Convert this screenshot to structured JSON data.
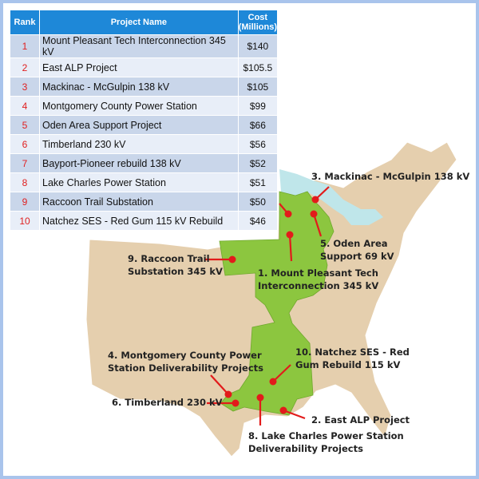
{
  "table": {
    "headers": {
      "rank": "Rank",
      "name": "Project Name",
      "cost_line1": "Cost",
      "cost_line2": "(Millions)"
    },
    "rows": [
      {
        "rank": "1",
        "name": "Mount Pleasant Tech Interconnection 345 kV",
        "cost": "$140"
      },
      {
        "rank": "2",
        "name": "East ALP Project",
        "cost": "$105.5"
      },
      {
        "rank": "3",
        "name": "Mackinac - McGulpin 138 kV",
        "cost": "$105"
      },
      {
        "rank": "4",
        "name": "Montgomery County Power Station",
        "cost": "$99"
      },
      {
        "rank": "5",
        "name": "Oden Area Support Project",
        "cost": "$66"
      },
      {
        "rank": "6",
        "name": "Timberland 230 kV",
        "cost": "$56"
      },
      {
        "rank": "7",
        "name": "Bayport-Pioneer rebuild  138 kV",
        "cost": "$52"
      },
      {
        "rank": "8",
        "name": "Lake Charles Power Station",
        "cost": "$51"
      },
      {
        "rank": "9",
        "name": "Raccoon Trail Substation",
        "cost": "$50"
      },
      {
        "rank": "10",
        "name": "Natchez SES - Red Gum 115 kV Rebuild",
        "cost": "$46"
      }
    ]
  },
  "map": {
    "colors": {
      "land": "#e5cfae",
      "region": "#8cc63f",
      "lakes": "#bfe6ea",
      "marker": "#e21b1b",
      "header": "#1e88d8"
    },
    "labels": {
      "mackinac": "3. Mackinac - McGulpin 138 kV",
      "oden_1": "5. Oden Area",
      "oden_2": "Support 69 kV",
      "raccoon_1": "9. Raccoon Trail",
      "raccoon_2": "Substation 345 kV",
      "mtpleasant_1": "1. Mount Pleasant Tech",
      "mtpleasant_2": "Interconnection 345 kV",
      "montgomery_1": "4. Montgomery County Power",
      "montgomery_2": "Station Deliverability Projects",
      "natchez_1": "10. Natchez SES - Red",
      "natchez_2": "Gum Rebuild 115 kV",
      "timberland": "6. Timberland 230 kV",
      "eastalp": "2. East ALP Project",
      "lakecharles_1": "8. Lake Charles Power Station",
      "lakecharles_2": "Deliverability Projects"
    }
  }
}
